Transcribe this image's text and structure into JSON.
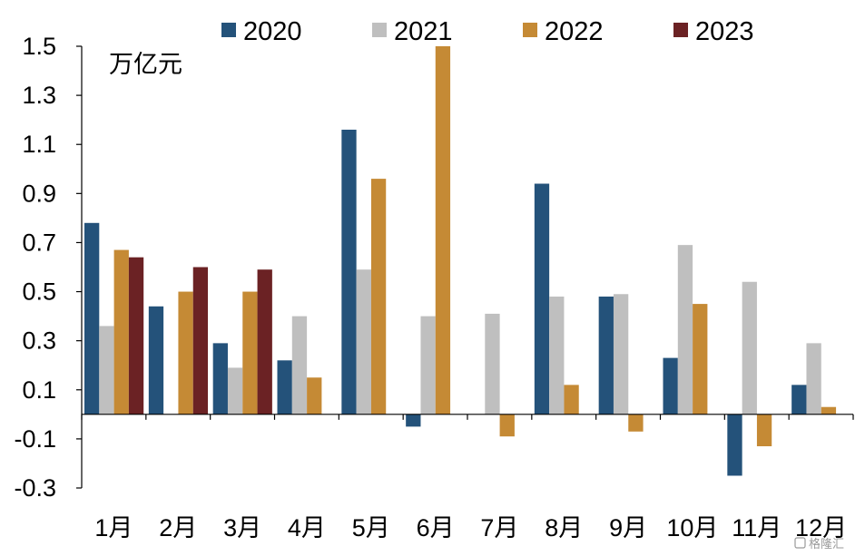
{
  "chart_data": {
    "type": "bar",
    "unit_label": "万亿元",
    "categories": [
      "1月",
      "2月",
      "3月",
      "4月",
      "5月",
      "6月",
      "7月",
      "8月",
      "9月",
      "10月",
      "11月",
      "12月"
    ],
    "series": [
      {
        "name": "2020",
        "color": "#24527a",
        "values": [
          0.78,
          0.44,
          0.29,
          0.22,
          1.16,
          -0.05,
          null,
          0.94,
          0.48,
          0.23,
          -0.25,
          0.12
        ]
      },
      {
        "name": "2021",
        "color": "#bfbfbf",
        "values": [
          0.36,
          null,
          0.19,
          0.4,
          0.59,
          0.4,
          0.41,
          0.48,
          0.49,
          0.69,
          0.54,
          0.29
        ]
      },
      {
        "name": "2022",
        "color": "#c58a35",
        "values": [
          0.67,
          0.5,
          0.5,
          0.15,
          0.96,
          1.5,
          -0.09,
          0.12,
          -0.07,
          0.45,
          -0.13,
          0.03
        ]
      },
      {
        "name": "2023",
        "color": "#6b2224",
        "values": [
          0.64,
          0.6,
          0.59,
          null,
          null,
          null,
          null,
          null,
          null,
          null,
          null,
          null
        ]
      }
    ],
    "yticks": [
      "1.5",
      "1.3",
      "1.1",
      "0.9",
      "0.7",
      "0.5",
      "0.3",
      "0.1",
      "-0.1",
      "-0.3"
    ],
    "ylim": [
      -0.3,
      1.5
    ],
    "legend_position": "top",
    "grid": false
  },
  "watermark": "格隆汇"
}
